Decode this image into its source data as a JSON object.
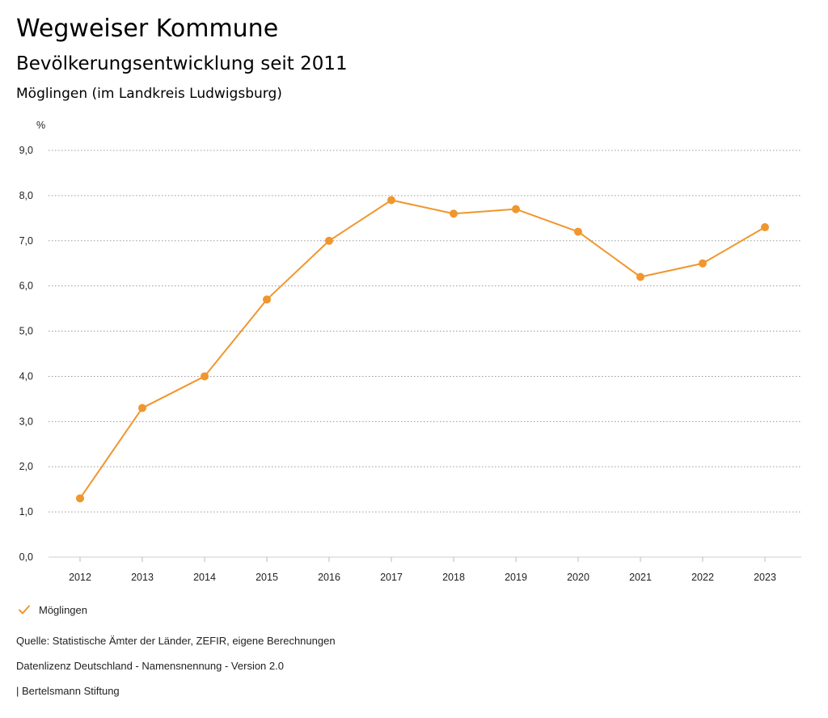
{
  "header": {
    "title": "Wegweiser Kommune",
    "subtitle": "Bevölkerungsentwicklung seit 2011",
    "region": "Möglingen (im Landkreis Ludwigsburg)"
  },
  "chart_data": {
    "type": "line",
    "unit_label": "%",
    "categories": [
      "2012",
      "2013",
      "2014",
      "2015",
      "2016",
      "2017",
      "2018",
      "2019",
      "2020",
      "2021",
      "2022",
      "2023"
    ],
    "series": [
      {
        "name": "Möglingen",
        "color": "#f0962d",
        "values": [
          1.3,
          3.3,
          4.0,
          5.7,
          7.0,
          7.9,
          7.6,
          7.7,
          7.2,
          6.2,
          6.5,
          7.3
        ]
      }
    ],
    "y_ticks": [
      "0,0",
      "1,0",
      "2,0",
      "3,0",
      "4,0",
      "5,0",
      "6,0",
      "7,0",
      "8,0",
      "9,0"
    ],
    "ylim": [
      0,
      9
    ],
    "grid": true,
    "legend_position": "bottom-left"
  },
  "legend": {
    "icon": "check-icon"
  },
  "footer": {
    "source": "Quelle: Statistische Ämter der Länder, ZEFIR, eigene Berechnungen",
    "license": "Datenlizenz Deutschland - Namensnennung - Version 2.0",
    "publisher": "| Bertelsmann Stiftung"
  }
}
